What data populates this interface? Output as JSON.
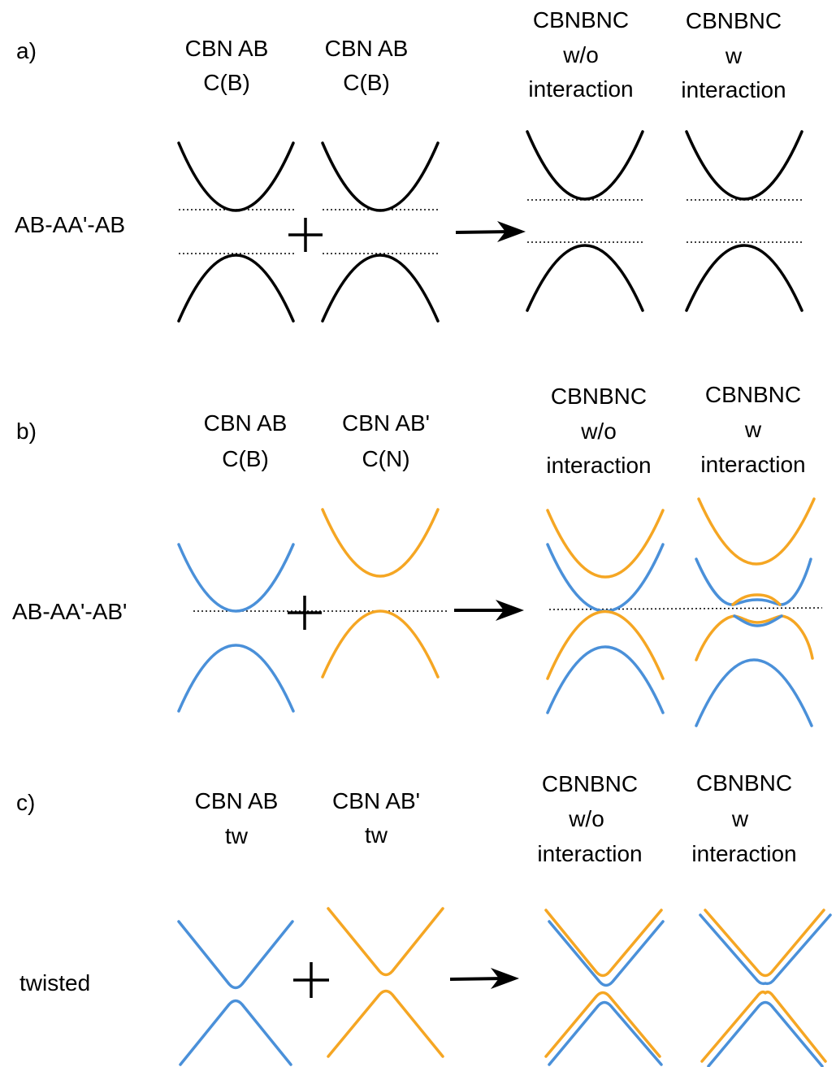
{
  "colors": {
    "black": "#000000",
    "blue": "#4a90d9",
    "orange": "#f5a623"
  },
  "panel_a": {
    "letter": "a)",
    "row_label": "AB-AA'-AB",
    "col1": [
      "CBN AB",
      "C(B)"
    ],
    "col2": [
      "CBN AB",
      "C(B)"
    ],
    "col3": [
      "CBNBNC",
      "w/o",
      "interaction"
    ],
    "col4": [
      "CBNBNC",
      "w",
      "interaction"
    ]
  },
  "panel_b": {
    "letter": "b)",
    "row_label": "AB-AA'-AB'",
    "col1": [
      "CBN AB",
      "C(B)"
    ],
    "col2": [
      "CBN AB'",
      "C(N)"
    ],
    "col3": [
      "CBNBNC",
      "w/o",
      "interaction"
    ],
    "col4": [
      "CBNBNC",
      "w",
      "interaction"
    ]
  },
  "panel_c": {
    "letter": "c)",
    "row_label": "twisted",
    "col1": [
      "CBN AB",
      "tw"
    ],
    "col2": [
      "CBN AB'",
      "tw"
    ],
    "col3": [
      "CBNBNC",
      "w/o",
      "interaction"
    ],
    "col4": [
      "CBNBNC",
      "w",
      "interaction"
    ]
  }
}
